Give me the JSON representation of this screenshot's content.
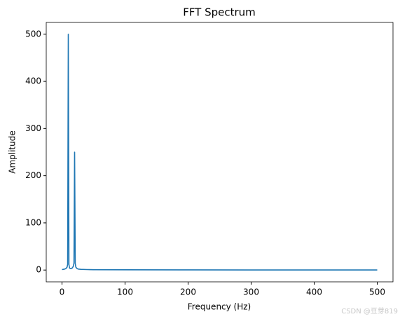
{
  "chart_data": {
    "type": "line",
    "title": "FFT Spectrum",
    "x_label": "Frequency (Hz)",
    "y_label": "Amplitude",
    "x": [
      0,
      2,
      4,
      6,
      8,
      9,
      10,
      11,
      12,
      14,
      16,
      18,
      19,
      20,
      21,
      22,
      24,
      26,
      30,
      40,
      50,
      100,
      200,
      300,
      400,
      500
    ],
    "series": [
      {
        "name": "Amplitude",
        "color": "#1f77b4",
        "values": [
          1,
          1.5,
          2,
          3,
          6,
          12,
          500,
          12,
          4,
          3,
          4,
          8,
          15,
          250,
          14,
          6,
          3,
          2,
          1.5,
          1,
          0.8,
          0.5,
          0.3,
          0.2,
          0.2,
          0.2
        ]
      }
    ],
    "xlim": [
      -25,
      525
    ],
    "xticks": [
      0,
      100,
      200,
      300,
      400,
      500
    ],
    "ylim": [
      -25,
      525
    ],
    "yticks": [
      0,
      100,
      200,
      300,
      400,
      500
    ],
    "grid": false,
    "watermark": "CSDN @豆芽819"
  }
}
